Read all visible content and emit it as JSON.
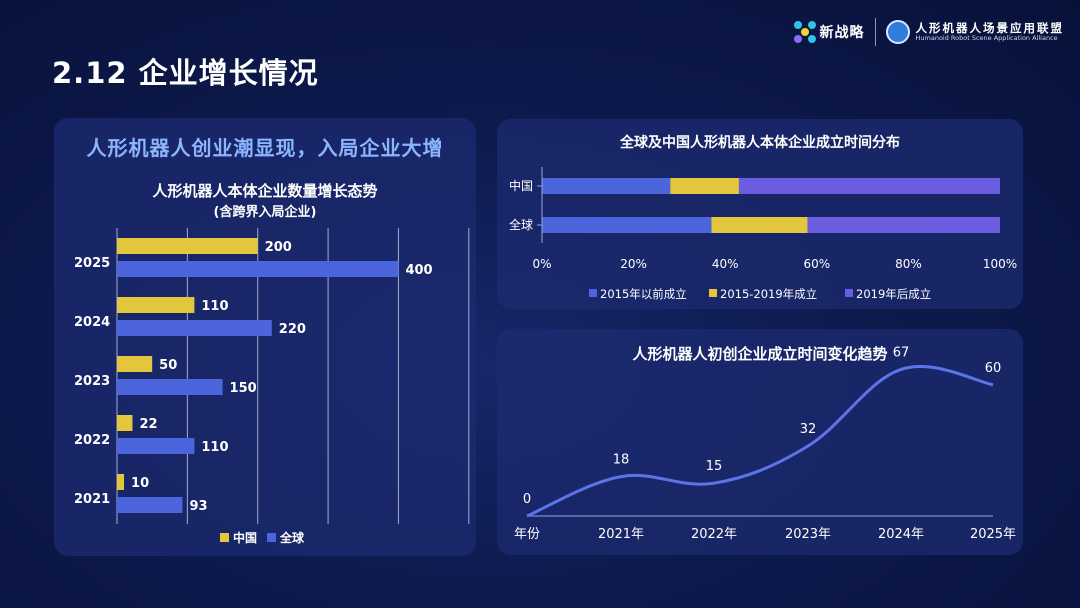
{
  "page": {
    "title": "2.12 企业增长情况"
  },
  "brand": {
    "name": "新战略",
    "alliance_cn": "人形机器人场景应用联盟",
    "alliance_en": "Humanoid Robot Scene Application Alliance"
  },
  "colors": {
    "china": "#e3c63b",
    "global": "#4c65dc",
    "after2019": "#6a5ddf",
    "line": "#5c74e8"
  },
  "left_panel": {
    "headline": "人形机器人创业潮显现，入局企业大增"
  },
  "chart_data": [
    {
      "type": "bar",
      "orientation": "horizontal",
      "title": "人形机器人本体企业数量增长态势",
      "subtitle": "(含跨界入局企业)",
      "categories": [
        "2025",
        "2024",
        "2023",
        "2022",
        "2021"
      ],
      "series": [
        {
          "name": "中国",
          "values": [
            200,
            110,
            50,
            22,
            10
          ]
        },
        {
          "name": "全球",
          "values": [
            400,
            220,
            150,
            110,
            93
          ]
        }
      ],
      "xlim": [
        0,
        550
      ],
      "grid": true,
      "legend": "bottom"
    },
    {
      "type": "bar",
      "orientation": "horizontal",
      "stacked": true,
      "title": "全球及中国人形机器人本体企业成立时间分布",
      "categories": [
        "中国",
        "全球"
      ],
      "series": [
        {
          "name": "2015年以前成立",
          "values": [
            28,
            37
          ]
        },
        {
          "name": "2015-2019年成立",
          "values": [
            15,
            21
          ]
        },
        {
          "name": "2019年后成立",
          "values": [
            57,
            42
          ]
        }
      ],
      "ticks": [
        "0%",
        "20%",
        "40%",
        "60%",
        "80%",
        "100%"
      ],
      "xlim": [
        0,
        100
      ],
      "legend": "bottom"
    },
    {
      "type": "line",
      "smooth": true,
      "title": "人形机器人初创企业成立时间变化趋势",
      "categories": [
        "年份",
        "2021年",
        "2022年",
        "2023年",
        "2024年",
        "2025年"
      ],
      "values": [
        0,
        18,
        15,
        32,
        67,
        60
      ],
      "ylim": [
        0,
        80
      ]
    }
  ]
}
